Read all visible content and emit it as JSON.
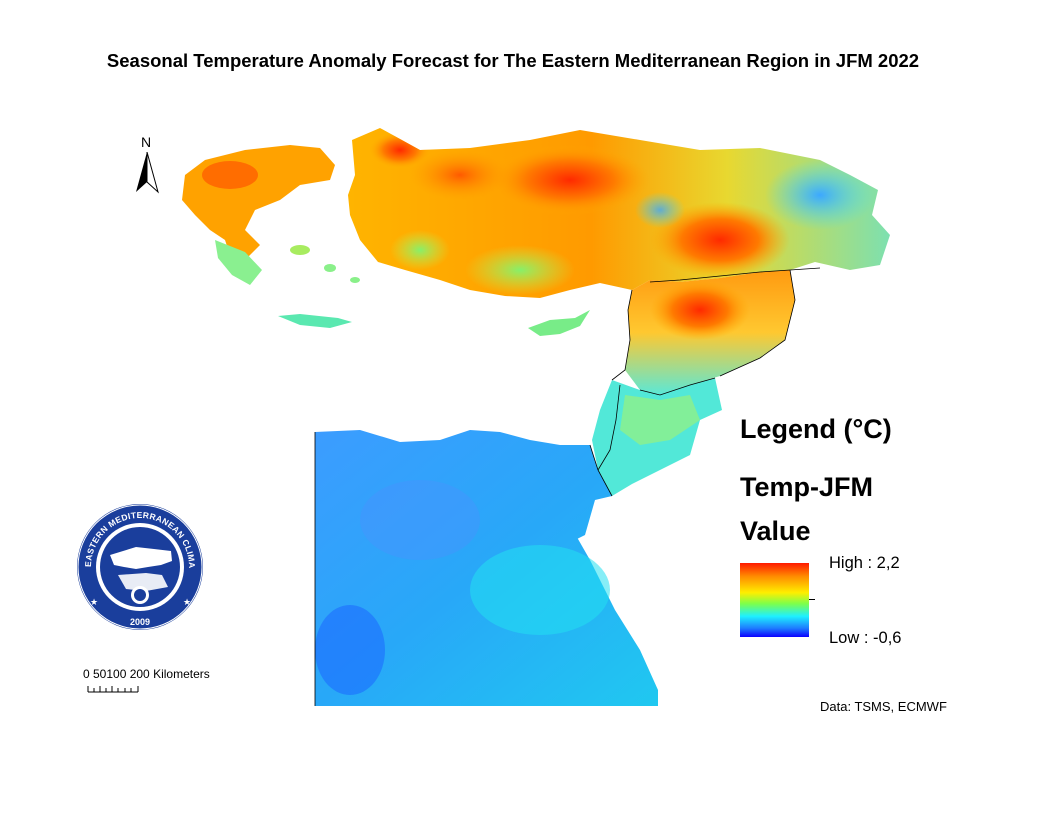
{
  "title": "Seasonal Temperature Anomaly Forecast for The Eastern Mediterranean Region in JFM 2022",
  "legend": {
    "heading": "Legend (°C)",
    "layer": "Temp-JFM",
    "field": "Value",
    "high_label": "High : 2,2",
    "low_label": "Low : -0,6",
    "high_value": 2.2,
    "low_value": -0.6,
    "ramp_colors": [
      "#ff1a00",
      "#ff8c00",
      "#ffee00",
      "#7dff4a",
      "#1ef0ff",
      "#1e7dff",
      "#0a00ff"
    ]
  },
  "north_arrow": {
    "label": "N",
    "icon": "north-arrow-icon"
  },
  "scale_bar": {
    "label": "0 50100  200  Kilometers"
  },
  "credit": "Data:  TSMS, ECMWF",
  "emblem": {
    "icon": "emcc-emblem-icon",
    "ring_text": "EASTERN MEDITERRANEAN CLIMATE CENTRE",
    "year": "2009",
    "ring_color": "#1a3e9c"
  },
  "regions": [
    {
      "name": "turkey",
      "tone": "warm"
    },
    {
      "name": "greece",
      "tone": "warm"
    },
    {
      "name": "cyprus",
      "tone": "mild"
    },
    {
      "name": "syria",
      "tone": "warm"
    },
    {
      "name": "israel-jordan",
      "tone": "cool"
    },
    {
      "name": "egypt",
      "tone": "cold"
    }
  ]
}
